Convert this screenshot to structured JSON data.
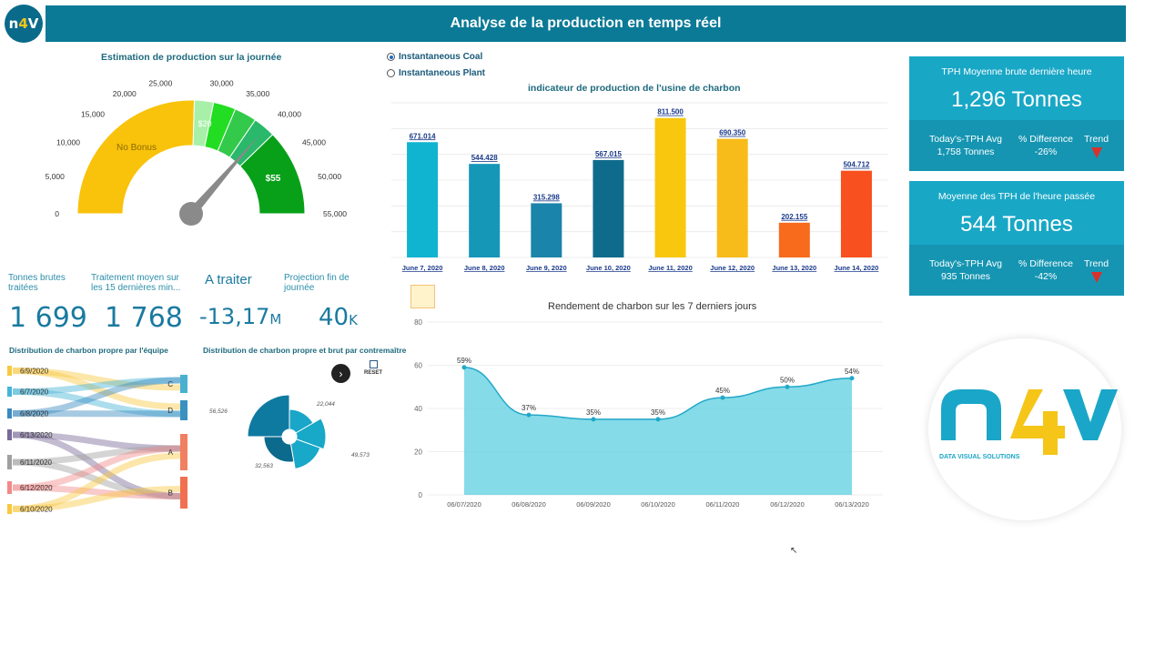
{
  "logo": {
    "text_n": "n",
    "text_4": "4",
    "text_v": "V"
  },
  "header": {
    "title": "Analyse de la production en temps réel"
  },
  "gauge": {
    "title": "Estimation de production sur la journée",
    "ticks": [
      "0",
      "5,000",
      "10,000",
      "15,000",
      "20,000",
      "25,000",
      "30,000",
      "35,000",
      "40,000",
      "45,000",
      "50,000",
      "55,000"
    ],
    "band_labels": {
      "no_bonus": "No Bonus",
      "b20": "$20",
      "b55": "$55"
    },
    "value": 40000,
    "max": 55000
  },
  "kpis": [
    {
      "label": "Tonnes brutes traitées",
      "value": "1 699"
    },
    {
      "label": "Traitement moyen sur les 15 dernières min...",
      "value": "1 768"
    },
    {
      "label": "A traiter",
      "value": "-13,17",
      "unit": "M"
    },
    {
      "label": "Projection fin de journée",
      "value": "40",
      "unit": "K"
    }
  ],
  "sankey": {
    "title": "Distribution de charbon propre par l'équipe",
    "dates": [
      "6/9/2020",
      "6/7/2020",
      "6/8/2020",
      "6/13/2020",
      "6/11/2020",
      "6/12/2020",
      "6/10/2020"
    ],
    "teams": [
      "C",
      "D",
      "A",
      "B"
    ]
  },
  "sunburst": {
    "title": "Distribution de charbon propre et brut par contremaître",
    "labels": [
      "56,526",
      "22,044",
      "49,573",
      "32,563"
    ],
    "reset_label": "RESET",
    "nav_icon": "chevron-right-icon"
  },
  "radios": {
    "options": [
      "Instantaneous Coal",
      "Instantaneous Plant"
    ],
    "selected": 0
  },
  "bar_chart_title": "indicateur de production de l'usine de charbon",
  "line_chart_title": "Rendement de charbon sur les 7 derniers jours",
  "chart_data": [
    {
      "type": "bar",
      "title": "indicateur de production de l'usine de charbon",
      "categories": [
        "June 7, 2020",
        "June 8, 2020",
        "June 9, 2020",
        "June 10, 2020",
        "June 11, 2020",
        "June 12, 2020",
        "June 13, 2020",
        "June 14, 2020"
      ],
      "values": [
        671.014,
        544.428,
        315.298,
        567.015,
        811.5,
        690.35,
        202.155,
        504.712
      ],
      "data_labels": [
        "671.014",
        "544.428",
        "315.298",
        "567.015",
        "811.500",
        "690.350",
        "202.155",
        "504.712"
      ],
      "colors": [
        "#10b4d0",
        "#1597b8",
        "#1a84aa",
        "#0f6b8c",
        "#f8c70e",
        "#f7bb1a",
        "#f86a1c",
        "#f8501e"
      ],
      "ylim": [
        0,
        900
      ],
      "grid": true
    },
    {
      "type": "area",
      "title": "Rendement de charbon sur les 7 derniers jours",
      "x": [
        "06/07/2020",
        "06/08/2020",
        "06/09/2020",
        "06/10/2020",
        "06/11/2020",
        "06/12/2020",
        "06/13/2020"
      ],
      "values": [
        59,
        37,
        35,
        35,
        45,
        50,
        54
      ],
      "data_labels": [
        "59%",
        "37%",
        "35%",
        "35%",
        "45%",
        "50%",
        "54%"
      ],
      "yticks": [
        "0",
        "20",
        "40",
        "60",
        "80"
      ],
      "ylim": [
        0,
        80
      ],
      "color": "#5ccfe0",
      "grid": true
    }
  ],
  "cards": [
    {
      "title": "TPH Moyenne brute dernière heure",
      "big": "1,296 Tonnes",
      "avg_label": "Today's-TPH Avg",
      "avg_value": "1,758 Tonnes",
      "diff_label": "% Difference",
      "diff_value": "-26%",
      "trend_label": "Trend"
    },
    {
      "title": "Moyenne des TPH de l'heure passée",
      "big": "544 Tonnes",
      "avg_label": "Today's-TPH Avg",
      "avg_value": "935 Tonnes",
      "diff_label": "% Difference",
      "diff_value": "-42%",
      "trend_label": "Trend"
    }
  ],
  "brand": {
    "tagline": "DATA VISUAL SOLUTIONS",
    "primary": "#1aa6c8",
    "accent": "#f5c518"
  }
}
